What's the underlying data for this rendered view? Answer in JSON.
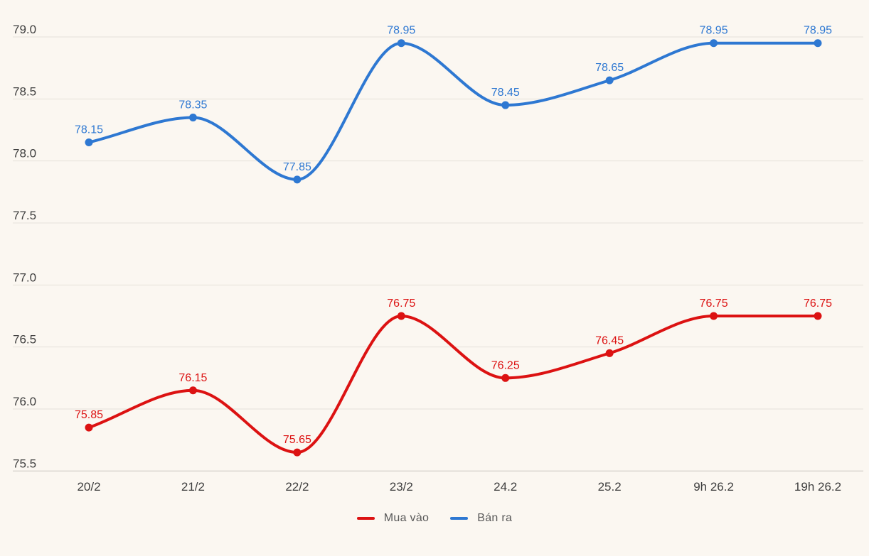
{
  "chart_data": {
    "type": "line",
    "line_shape": "spline",
    "title": "",
    "xlabel": "",
    "ylabel": "",
    "categories": [
      "20/2",
      "21/2",
      "22/2",
      "23/2",
      "24.2",
      "25.2",
      "9h 26.2",
      "19h 26.2"
    ],
    "series": [
      {
        "name": "Mua vào",
        "color": "#dc1212",
        "values": [
          75.85,
          76.15,
          75.65,
          76.75,
          76.25,
          76.45,
          76.75,
          76.75
        ]
      },
      {
        "name": "Bán ra",
        "color": "#2e78d2",
        "values": [
          78.15,
          78.35,
          77.85,
          78.95,
          78.45,
          78.65,
          78.95,
          78.95
        ]
      }
    ],
    "ylim": [
      75.5,
      79.0
    ],
    "ytick_step": 0.5,
    "ytick_labels": [
      "79.0",
      "78.5",
      "78.0",
      "77.5",
      "77.0",
      "76.5",
      "76.0",
      "75.5"
    ],
    "grid": true,
    "data_labels": "above-points",
    "legend_position": "bottom-center"
  },
  "colors": {
    "background": "#fbf7f1",
    "gridline": "#e6e2da",
    "axis_line": "#c9c5bf",
    "tick_text": "#3e3e3e",
    "legend_text": "#585858"
  }
}
